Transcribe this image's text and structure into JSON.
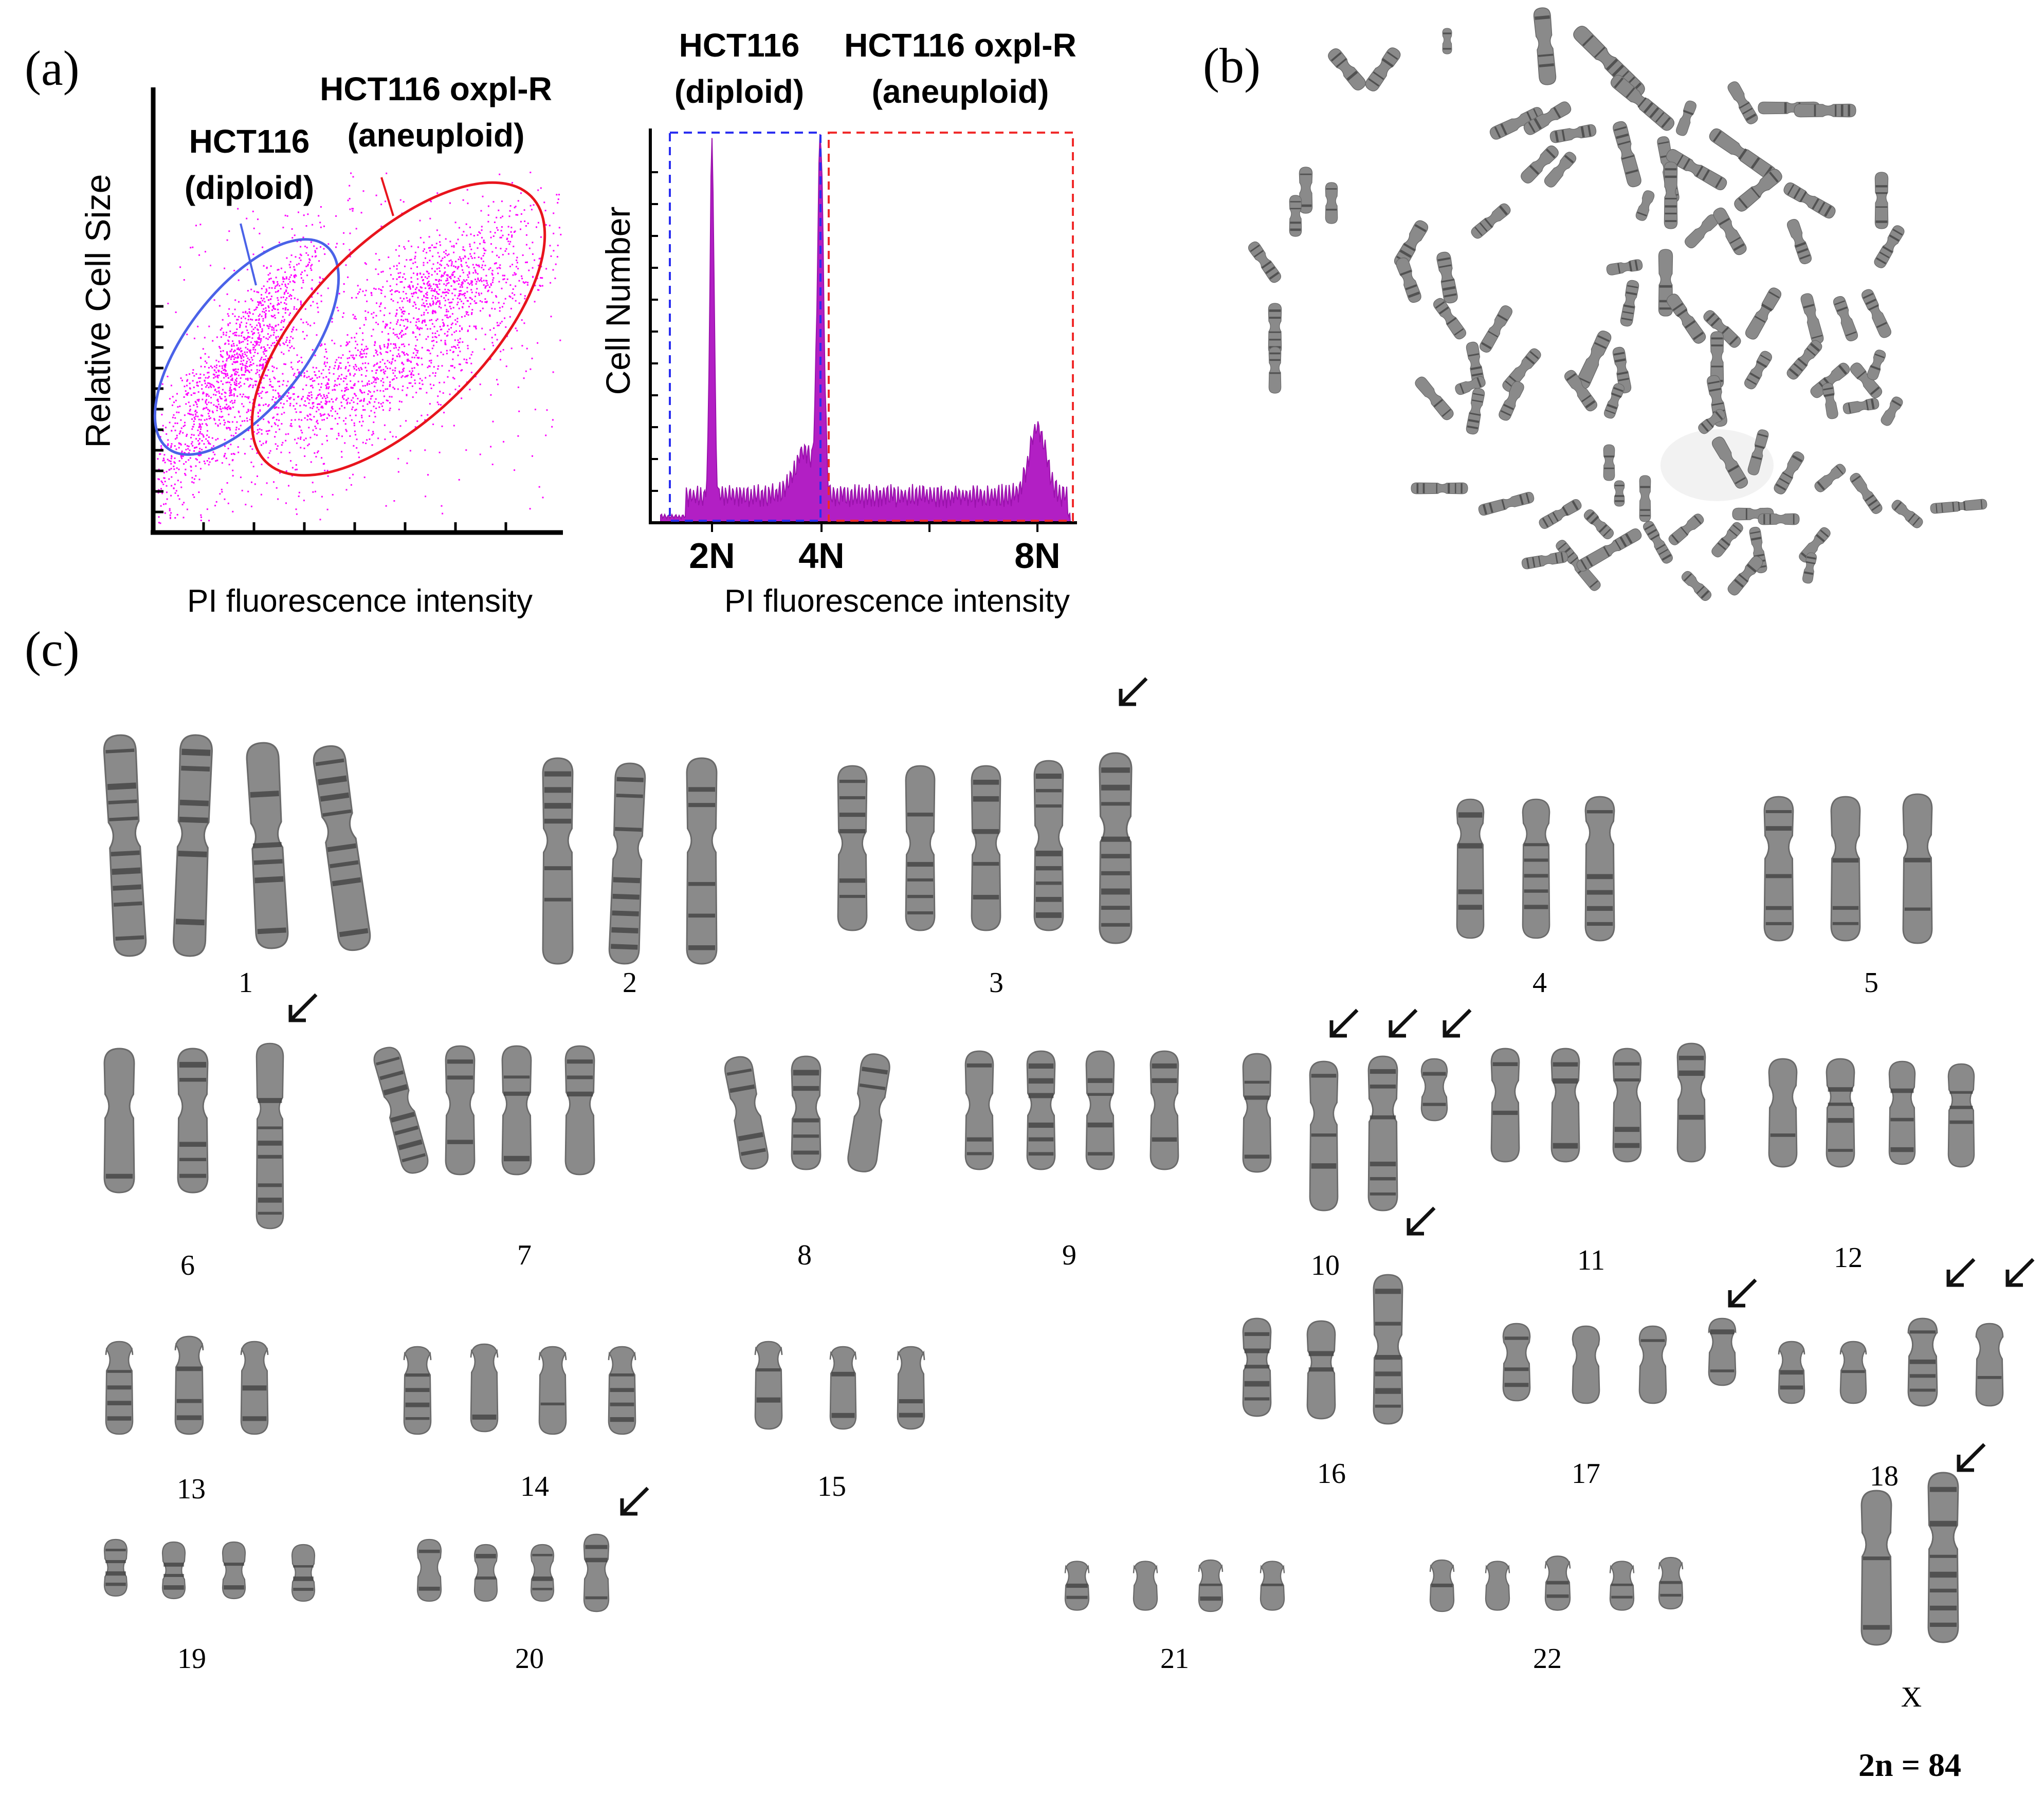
{
  "panel_letters": {
    "a": "(a)",
    "b": "(b)",
    "c": "(c)"
  },
  "scatter": {
    "ylabel": "Relative Cell Size",
    "xlabel": "PI fluorescence intensity",
    "label_diploid_1": "HCT116",
    "label_diploid_2": "(diploid)",
    "label_aneuploid_1": "HCT116 oxpl-R",
    "label_aneuploid_2": "(aneuploid)",
    "point_color": "#ff00ff",
    "diploid_ellipse_color": "#4a62e8",
    "aneuploid_ellipse_color": "#e8141c"
  },
  "histogram": {
    "ylabel": "Cell Number",
    "xlabel": "PI fluorescence intensity",
    "label_diploid_1": "HCT116",
    "label_diploid_2": "(diploid)",
    "label_aneuploid_1": "HCT116 oxpl-R",
    "label_aneuploid_2": "(aneuploid)",
    "ticks": [
      "2N",
      "4N",
      "8N"
    ],
    "fill_color": "#b21fc4",
    "diploid_box_color": "#2a2ef0",
    "aneuploid_box_color": "#f02a2a"
  },
  "karyotype": {
    "groups": [
      "1",
      "2",
      "3",
      "4",
      "5",
      "6",
      "7",
      "8",
      "9",
      "10",
      "11",
      "12",
      "13",
      "14",
      "15",
      "16",
      "17",
      "18",
      "19",
      "20",
      "21",
      "22",
      "X"
    ],
    "count_label": "2n = 84",
    "chromosome_color": "#6b6b6b",
    "arrow_color": "#111111"
  },
  "chart_data": {
    "type": "area",
    "title": "",
    "xlabel": "PI fluorescence intensity",
    "ylabel": "Cell Number",
    "x_ticks": [
      "2N",
      "4N",
      "8N"
    ],
    "series": [
      {
        "name": "HCT116 (diploid)",
        "peaks": [
          {
            "x": "2N",
            "relative_height": 0.95
          },
          {
            "x": "4N",
            "relative_height": 0.94
          }
        ]
      },
      {
        "name": "HCT116 oxpl-R (aneuploid)",
        "peaks": [
          {
            "x": "4N",
            "relative_height": 0.94
          },
          {
            "x": "8N",
            "relative_height": 0.19
          }
        ]
      }
    ],
    "grid": false,
    "legend": "none"
  }
}
